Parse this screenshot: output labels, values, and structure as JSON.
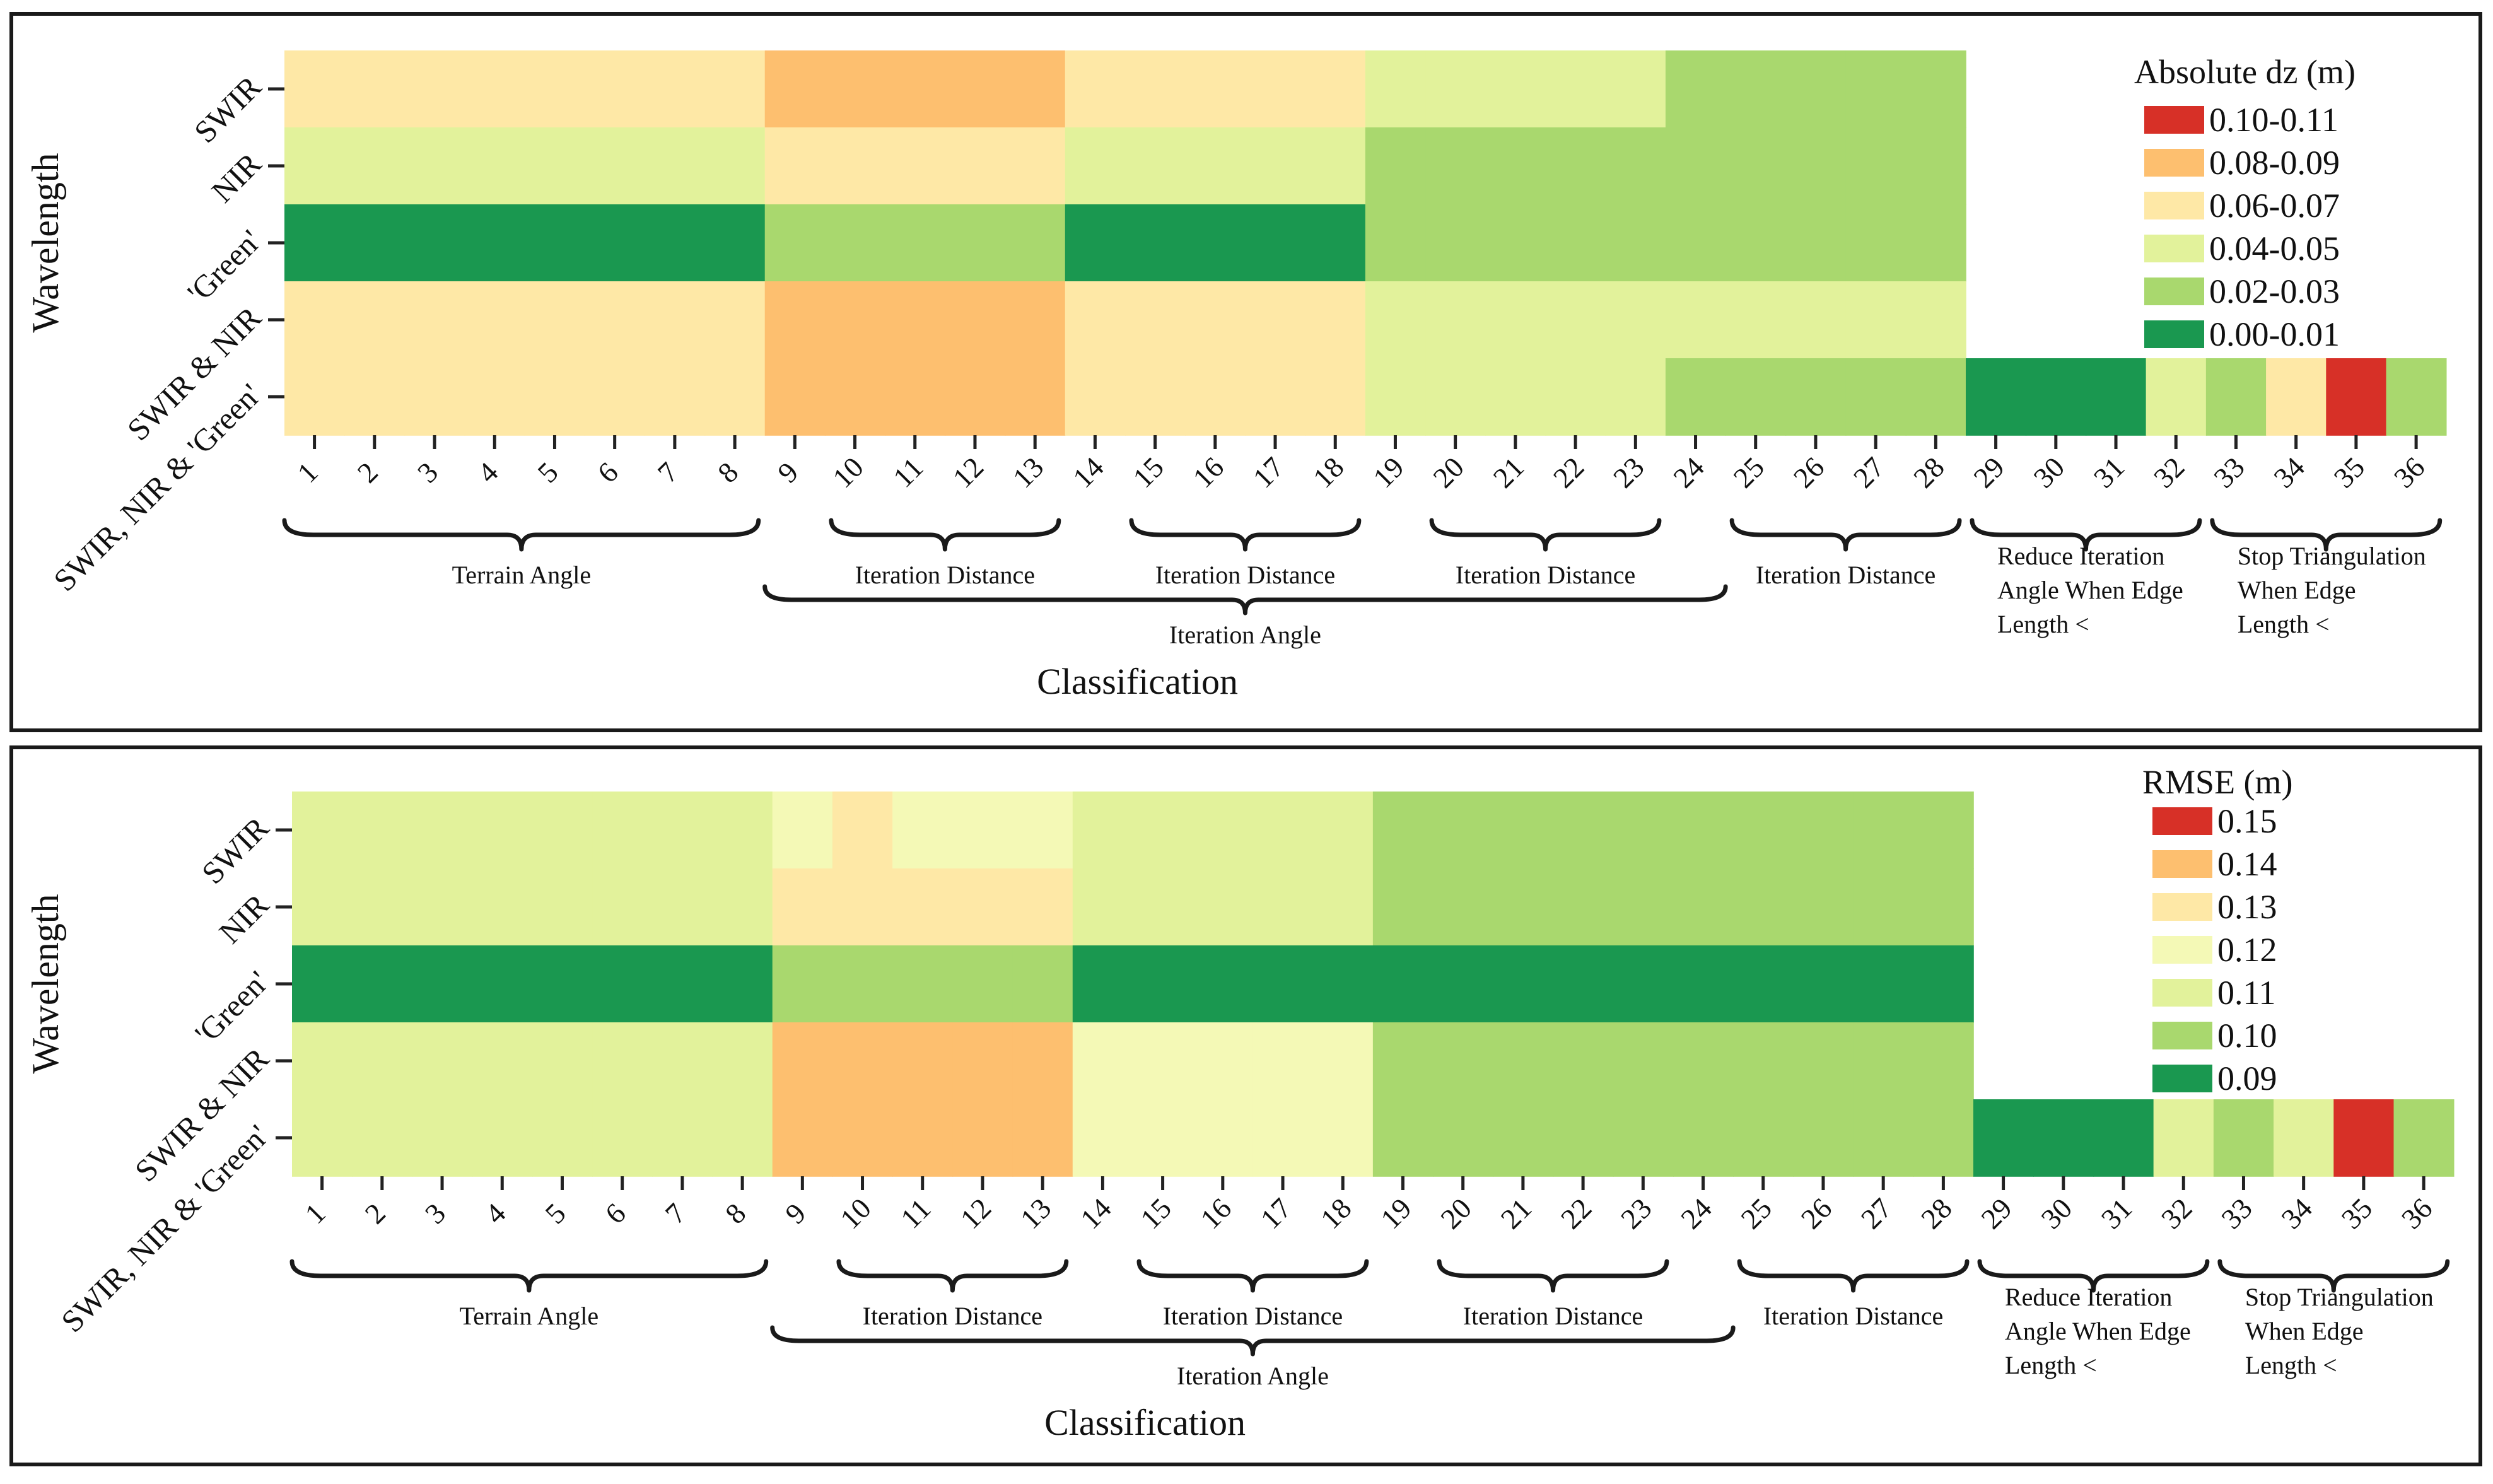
{
  "chart_data": [
    {
      "type": "heatmap",
      "xlabel": "Classification",
      "ylabel": "Wavelength",
      "x": [
        "1",
        "2",
        "3",
        "4",
        "5",
        "6",
        "7",
        "8",
        "9",
        "10",
        "11",
        "12",
        "13",
        "14",
        "15",
        "16",
        "17",
        "18",
        "19",
        "20",
        "21",
        "22",
        "23",
        "24",
        "25",
        "26",
        "27",
        "28",
        "29",
        "30",
        "31",
        "32",
        "33",
        "34",
        "35",
        "36"
      ],
      "y": [
        "SWIR",
        "NIR",
        "'Green'",
        "SWIR & NIR",
        "SWIR, NIR & 'Green'"
      ],
      "legend_title": "Absolute dz (m)",
      "legend": [
        {
          "label": "0.10-0.11",
          "color": "#d73027"
        },
        {
          "label": "0.08-0.09",
          "color": "#fdbf6f"
        },
        {
          "label": "0.06-0.07",
          "color": "#fee8a6"
        },
        {
          "label": "0.04-0.05",
          "color": "#e2f29b"
        },
        {
          "label": "0.02-0.03",
          "color": "#a9d86e"
        },
        {
          "label": "0.00-0.01",
          "color": "#1a9850"
        }
      ],
      "legend_position": "right",
      "groups": [
        {
          "label": "Terrain Angle",
          "from": 1,
          "to": 8
        },
        {
          "label": "Iteration Distance",
          "from": 10,
          "to": 13
        },
        {
          "label": "Iteration Distance",
          "from": 15,
          "to": 18
        },
        {
          "label": "Iteration Distance",
          "from": 20,
          "to": 23
        },
        {
          "label": "Iteration Distance",
          "from": 25,
          "to": 28
        },
        {
          "label": "Reduce Iteration\nAngle When Edge\nLength <",
          "from": 29,
          "to": 32
        },
        {
          "label": "Stop Triangulation\nWhen Edge\nLength <",
          "from": 33,
          "to": 36
        }
      ],
      "outer_group": {
        "label": "Iteration Angle",
        "from": 9,
        "to": 24
      },
      "values": [
        [
          0.065,
          0.065,
          0.065,
          0.065,
          0.065,
          0.065,
          0.065,
          0.065,
          0.085,
          0.085,
          0.085,
          0.085,
          0.085,
          0.065,
          0.065,
          0.065,
          0.065,
          0.065,
          0.045,
          0.045,
          0.045,
          0.045,
          0.045,
          0.025,
          0.025,
          0.025,
          0.025,
          0.025,
          null,
          null,
          null,
          null,
          null,
          null,
          null,
          null
        ],
        [
          0.045,
          0.045,
          0.045,
          0.045,
          0.045,
          0.045,
          0.045,
          0.045,
          0.065,
          0.065,
          0.065,
          0.065,
          0.065,
          0.045,
          0.045,
          0.045,
          0.045,
          0.045,
          0.025,
          0.025,
          0.025,
          0.025,
          0.025,
          0.025,
          0.025,
          0.025,
          0.025,
          0.025,
          null,
          null,
          null,
          null,
          null,
          null,
          null,
          null
        ],
        [
          0.005,
          0.005,
          0.005,
          0.005,
          0.005,
          0.005,
          0.005,
          0.005,
          0.025,
          0.025,
          0.025,
          0.025,
          0.025,
          0.005,
          0.005,
          0.005,
          0.005,
          0.005,
          0.025,
          0.025,
          0.025,
          0.025,
          0.025,
          0.025,
          0.025,
          0.025,
          0.025,
          0.025,
          null,
          null,
          null,
          null,
          null,
          null,
          null,
          null
        ],
        [
          0.065,
          0.065,
          0.065,
          0.065,
          0.065,
          0.065,
          0.065,
          0.065,
          0.085,
          0.085,
          0.085,
          0.085,
          0.085,
          0.065,
          0.065,
          0.065,
          0.065,
          0.065,
          0.045,
          0.045,
          0.045,
          0.045,
          0.045,
          0.045,
          0.045,
          0.045,
          0.045,
          0.045,
          null,
          null,
          null,
          null,
          null,
          null,
          null,
          null
        ],
        [
          0.065,
          0.065,
          0.065,
          0.065,
          0.065,
          0.065,
          0.065,
          0.065,
          0.085,
          0.085,
          0.085,
          0.085,
          0.085,
          0.065,
          0.065,
          0.065,
          0.065,
          0.065,
          0.045,
          0.045,
          0.045,
          0.045,
          0.045,
          0.025,
          0.025,
          0.025,
          0.025,
          0.025,
          0.005,
          0.005,
          0.005,
          0.045,
          0.025,
          0.065,
          0.105,
          0.025
        ]
      ]
    },
    {
      "type": "heatmap",
      "xlabel": "Classification",
      "ylabel": "Wavelength",
      "x": [
        "1",
        "2",
        "3",
        "4",
        "5",
        "6",
        "7",
        "8",
        "9",
        "10",
        "11",
        "12",
        "13",
        "14",
        "15",
        "16",
        "17",
        "18",
        "19",
        "20",
        "21",
        "22",
        "23",
        "24",
        "25",
        "26",
        "27",
        "28",
        "29",
        "30",
        "31",
        "32",
        "33",
        "34",
        "35",
        "36"
      ],
      "y": [
        "SWIR",
        "NIR",
        "'Green'",
        "SWIR & NIR",
        "SWIR, NIR & 'Green'"
      ],
      "legend_title": "RMSE (m)",
      "legend": [
        {
          "label": "0.15",
          "color": "#d73027"
        },
        {
          "label": "0.14",
          "color": "#fdbf6f"
        },
        {
          "label": "0.13",
          "color": "#fee8a6"
        },
        {
          "label": "0.12",
          "color": "#f4f9b6"
        },
        {
          "label": "0.11",
          "color": "#e2f29b"
        },
        {
          "label": "0.10",
          "color": "#a9d86e"
        },
        {
          "label": "0.09",
          "color": "#1a9850"
        }
      ],
      "legend_position": "right",
      "groups": [
        {
          "label": "Terrain Angle",
          "from": 1,
          "to": 8
        },
        {
          "label": "Iteration Distance",
          "from": 10,
          "to": 13
        },
        {
          "label": "Iteration Distance",
          "from": 15,
          "to": 18
        },
        {
          "label": "Iteration Distance",
          "from": 20,
          "to": 23
        },
        {
          "label": "Iteration Distance",
          "from": 25,
          "to": 28
        },
        {
          "label": "Reduce Iteration\nAngle When Edge\nLength <",
          "from": 29,
          "to": 32
        },
        {
          "label": "Stop Triangulation\nWhen Edge\nLength <",
          "from": 33,
          "to": 36
        }
      ],
      "outer_group": {
        "label": "Iteration Angle",
        "from": 9,
        "to": 24
      },
      "values": [
        [
          0.11,
          0.11,
          0.11,
          0.11,
          0.11,
          0.11,
          0.11,
          0.11,
          0.12,
          0.13,
          0.12,
          0.12,
          0.12,
          0.11,
          0.11,
          0.11,
          0.11,
          0.11,
          0.1,
          0.1,
          0.1,
          0.1,
          0.1,
          0.1,
          0.1,
          0.1,
          0.1,
          0.1,
          null,
          null,
          null,
          null,
          null,
          null,
          null,
          null
        ],
        [
          0.11,
          0.11,
          0.11,
          0.11,
          0.11,
          0.11,
          0.11,
          0.11,
          0.13,
          0.13,
          0.13,
          0.13,
          0.13,
          0.11,
          0.11,
          0.11,
          0.11,
          0.11,
          0.1,
          0.1,
          0.1,
          0.1,
          0.1,
          0.1,
          0.1,
          0.1,
          0.1,
          0.1,
          null,
          null,
          null,
          null,
          null,
          null,
          null,
          null
        ],
        [
          0.09,
          0.09,
          0.09,
          0.09,
          0.09,
          0.09,
          0.09,
          0.09,
          0.1,
          0.1,
          0.1,
          0.1,
          0.1,
          0.09,
          0.09,
          0.09,
          0.09,
          0.09,
          0.09,
          0.09,
          0.09,
          0.09,
          0.09,
          0.09,
          0.09,
          0.09,
          0.09,
          0.09,
          null,
          null,
          null,
          null,
          null,
          null,
          null,
          null
        ],
        [
          0.11,
          0.11,
          0.11,
          0.11,
          0.11,
          0.11,
          0.11,
          0.11,
          0.14,
          0.14,
          0.14,
          0.14,
          0.14,
          0.12,
          0.12,
          0.12,
          0.12,
          0.12,
          0.1,
          0.1,
          0.1,
          0.1,
          0.1,
          0.1,
          0.1,
          0.1,
          0.1,
          0.1,
          null,
          null,
          null,
          null,
          null,
          null,
          null,
          null
        ],
        [
          0.11,
          0.11,
          0.11,
          0.11,
          0.11,
          0.11,
          0.11,
          0.11,
          0.14,
          0.14,
          0.14,
          0.14,
          0.14,
          0.12,
          0.12,
          0.12,
          0.12,
          0.12,
          0.1,
          0.1,
          0.1,
          0.1,
          0.1,
          0.1,
          0.1,
          0.1,
          0.1,
          0.1,
          0.09,
          0.09,
          0.09,
          0.11,
          0.1,
          0.11,
          0.15,
          0.1
        ]
      ]
    }
  ]
}
